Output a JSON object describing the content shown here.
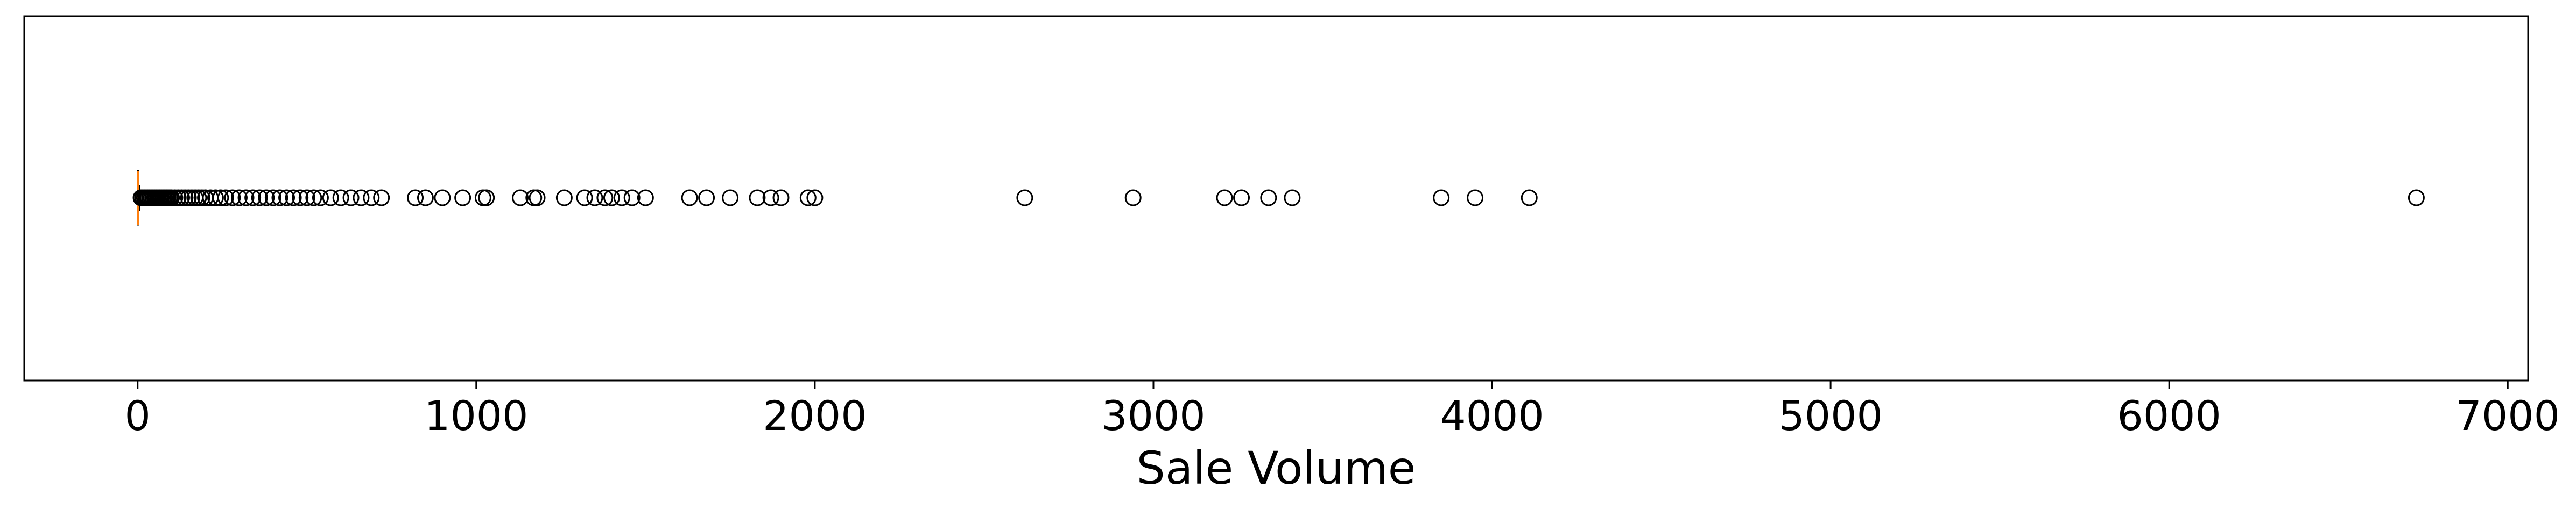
{
  "chart_data": {
    "type": "boxplot",
    "orientation": "horizontal",
    "title": "",
    "xlabel": "Sale Volume",
    "ylabel": "",
    "xlim": [
      -335,
      7060
    ],
    "xticks": [
      0,
      1000,
      2000,
      3000,
      4000,
      5000,
      6000,
      7000
    ],
    "xtick_labels": [
      "0",
      "1000",
      "2000",
      "3000",
      "4000",
      "5000",
      "6000",
      "7000"
    ],
    "y_ticks_visible": false,
    "grid": false,
    "box": {
      "q1": 0,
      "median": 1,
      "q3": 2,
      "whisker_low": 0,
      "whisker_high": 5
    },
    "outliers": [
      10,
      15,
      20,
      25,
      30,
      35,
      40,
      45,
      50,
      55,
      60,
      65,
      70,
      75,
      80,
      85,
      90,
      95,
      100,
      110,
      120,
      130,
      140,
      150,
      160,
      170,
      180,
      190,
      200,
      215,
      230,
      245,
      260,
      280,
      300,
      320,
      340,
      360,
      380,
      400,
      420,
      440,
      460,
      480,
      500,
      520,
      540,
      570,
      600,
      630,
      660,
      690,
      720,
      820,
      850,
      900,
      960,
      1020,
      1030,
      1130,
      1170,
      1180,
      1260,
      1320,
      1350,
      1380,
      1400,
      1430,
      1460,
      1500,
      1630,
      1680,
      1750,
      1830,
      1870,
      1900,
      1980,
      2000,
      2620,
      2940,
      3210,
      3260,
      3340,
      3410,
      3850,
      3950,
      4110,
      6730
    ],
    "colors": {
      "box": "#000000",
      "median": "#ff7f0e",
      "outlier": "#000000"
    }
  }
}
